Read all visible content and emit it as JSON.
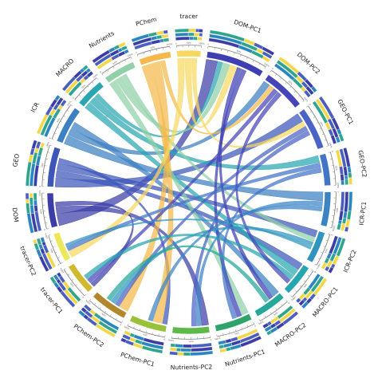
{
  "chart_data": {
    "type": "chord",
    "sectors": [
      {
        "name": "DOM-PC1",
        "color": "#3f3fb4",
        "value": 22
      },
      {
        "name": "DOM-PC2",
        "color": "#4645b8",
        "value": 16
      },
      {
        "name": "GEO-PC1",
        "color": "#4a63c4",
        "value": 16
      },
      {
        "name": "GEO-PC2",
        "color": "#4274c8",
        "value": 12
      },
      {
        "name": "ICR-PC1",
        "color": "#3a84c6",
        "value": 13
      },
      {
        "name": "ICR-PC2",
        "color": "#2e95c0",
        "value": 12
      },
      {
        "name": "MACRO-PC1",
        "color": "#25a6b0",
        "value": 12
      },
      {
        "name": "MACRO-PC2",
        "color": "#24a89a",
        "value": 12
      },
      {
        "name": "Nutrients-PC1",
        "color": "#2ea46a",
        "value": 14
      },
      {
        "name": "Nutrients-PC2",
        "color": "#5eb948",
        "value": 14
      },
      {
        "name": "PChem-PC1",
        "color": "#9ac13a",
        "value": 14
      },
      {
        "name": "PChem-PC2",
        "color": "#b2862a",
        "value": 14
      },
      {
        "name": "tracer-PC1",
        "color": "#d0b830",
        "value": 12
      },
      {
        "name": "tracer-PC2",
        "color": "#ece85a",
        "value": 11
      },
      {
        "name": "DOM",
        "color": "#3b3ea8",
        "value": 13
      },
      {
        "name": "GEO",
        "color": "#3d56b8",
        "value": 15
      },
      {
        "name": "ICR",
        "color": "#3c7fc2",
        "value": 14
      },
      {
        "name": "MACRO",
        "color": "#2aa6b0",
        "value": 11
      },
      {
        "name": "Nutrients",
        "color": "#8fd0a8",
        "value": 12
      },
      {
        "name": "PChem",
        "color": "#f4b94a",
        "value": 12
      },
      {
        "name": "tracer",
        "color": "#f6d860",
        "value": 9
      }
    ],
    "links": [
      {
        "source": "DOM",
        "target": "DOM-PC1",
        "value": 5
      },
      {
        "source": "DOM",
        "target": "Nutrients-PC2",
        "value": 3
      },
      {
        "source": "DOM",
        "target": "tracer-PC1",
        "value": 2
      },
      {
        "source": "GEO",
        "target": "GEO-PC1",
        "value": 4
      },
      {
        "source": "GEO",
        "target": "MACRO-PC1",
        "value": 3
      },
      {
        "source": "GEO",
        "target": "ICR-PC2",
        "value": 3
      },
      {
        "source": "GEO",
        "target": "PChem-PC1",
        "value": 2
      },
      {
        "source": "ICR",
        "target": "ICR-PC1",
        "value": 4
      },
      {
        "source": "ICR",
        "target": "DOM-PC2",
        "value": 3
      },
      {
        "source": "ICR",
        "target": "MACRO-PC2",
        "value": 3
      },
      {
        "source": "MACRO",
        "target": "MACRO-PC1",
        "value": 3
      },
      {
        "source": "MACRO",
        "target": "GEO-PC2",
        "value": 3
      },
      {
        "source": "MACRO",
        "target": "DOM-PC1",
        "value": 2
      },
      {
        "source": "Nutrients",
        "target": "Nutrients-PC1",
        "value": 3
      },
      {
        "source": "Nutrients",
        "target": "DOM-PC1",
        "value": 3
      },
      {
        "source": "Nutrients",
        "target": "ICR-PC2",
        "value": 2
      },
      {
        "source": "PChem",
        "target": "PChem-PC1",
        "value": 4
      },
      {
        "source": "PChem",
        "target": "PChem-PC2",
        "value": 4
      },
      {
        "source": "PChem",
        "target": "DOM-PC2",
        "value": 2
      },
      {
        "source": "tracer",
        "target": "tracer-PC2",
        "value": 3
      },
      {
        "source": "tracer",
        "target": "DOM-PC1",
        "value": 3
      },
      {
        "source": "tracer",
        "target": "GEO-PC1",
        "value": 2
      },
      {
        "source": "DOM-PC1",
        "target": "MACRO-PC2",
        "value": 2
      },
      {
        "source": "DOM-PC1",
        "target": "Nutrients-PC1",
        "value": 2
      },
      {
        "source": "DOM-PC2",
        "target": "tracer-PC1",
        "value": 2
      },
      {
        "source": "GEO-PC1",
        "target": "PChem-PC2",
        "value": 2
      },
      {
        "source": "GEO-PC2",
        "target": "tracer-PC2",
        "value": 2
      },
      {
        "source": "ICR-PC1",
        "target": "Nutrients-PC2",
        "value": 2
      },
      {
        "source": "ICR-PC2",
        "target": "PChem-PC2",
        "value": 2
      },
      {
        "source": "MACRO-PC1",
        "target": "tracer-PC1",
        "value": 2
      },
      {
        "source": "GEO-PC2",
        "target": "Nutrients-PC1",
        "value": 2
      },
      {
        "source": "ICR-PC1",
        "target": "PChem-PC1",
        "value": 2
      },
      {
        "source": "DOM-PC2",
        "target": "MACRO-PC1",
        "value": 2
      },
      {
        "source": "GEO-PC1",
        "target": "Nutrients-PC2",
        "value": 2
      },
      {
        "source": "ICR-PC2",
        "target": "tracer-PC2",
        "value": 1
      },
      {
        "source": "MACRO-PC2",
        "target": "PChem-PC2",
        "value": 2
      }
    ],
    "stack_palette": [
      "#3a3ea6",
      "#2a86c0",
      "#2ea58c",
      "#f0d84a",
      "#4a5fc0"
    ],
    "tick_labels": [
      "0",
      "50%",
      "100%"
    ]
  }
}
